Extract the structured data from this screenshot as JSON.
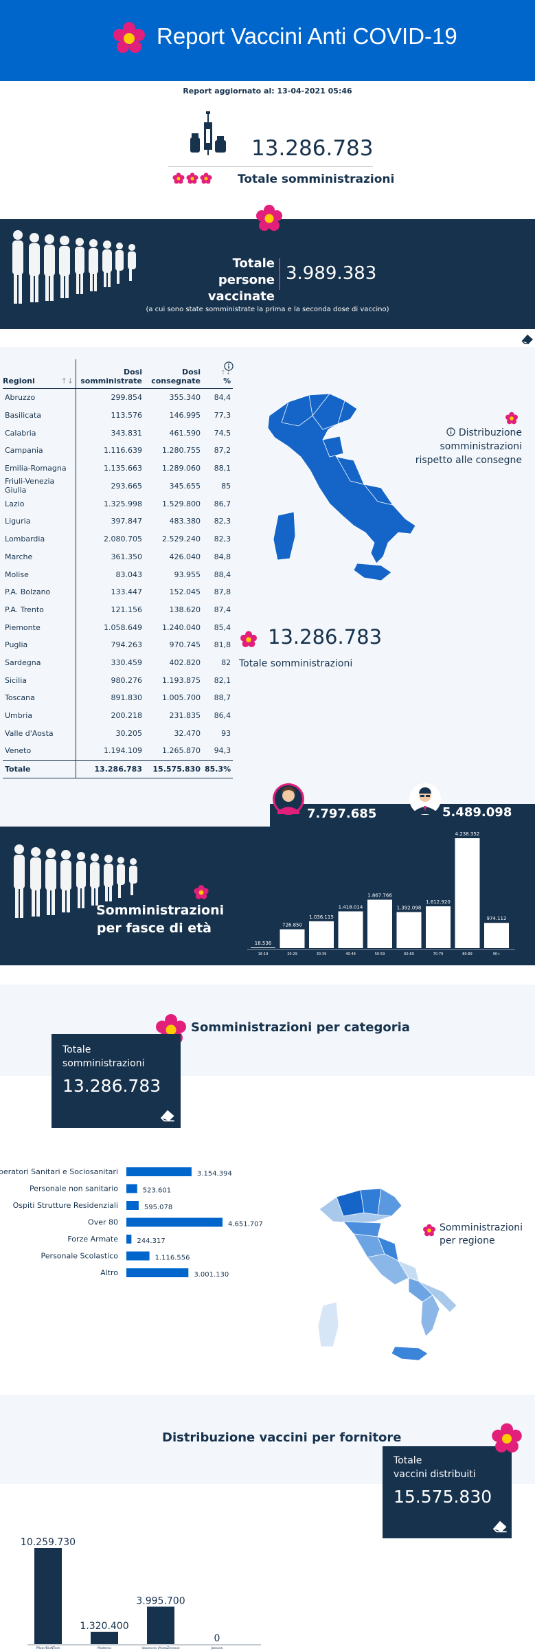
{
  "header": {
    "title": "Report Vaccini Anti COVID-19"
  },
  "updated": "Report aggiornato al: 13-04-2021 05:46",
  "total": {
    "value": "13.286.783",
    "label": "Totale somministrazioni"
  },
  "vaccinated": {
    "label_line1": "Totale",
    "label_line2": "persone vaccinate",
    "value": "3.989.383",
    "note": "(a cui sono state somministrate la prima e la seconda dose di vaccino)"
  },
  "regions_table": {
    "headers": {
      "region": "Regioni",
      "doses_line1": "Dosi",
      "doses_line2": "somministrate",
      "delivered_line1": "Dosi",
      "delivered_line2": "consegnate",
      "pct": "%"
    },
    "rows": [
      {
        "r": "Abruzzo",
        "a": "299.854",
        "b": "355.340",
        "p": "84,4"
      },
      {
        "r": "Basilicata",
        "a": "113.576",
        "b": "146.995",
        "p": "77,3"
      },
      {
        "r": "Calabria",
        "a": "343.831",
        "b": "461.590",
        "p": "74,5"
      },
      {
        "r": "Campania",
        "a": "1.116.639",
        "b": "1.280.755",
        "p": "87,2"
      },
      {
        "r": "Emilia-Romagna",
        "a": "1.135.663",
        "b": "1.289.060",
        "p": "88,1"
      },
      {
        "r": "Friuli-Venezia Giulia",
        "a": "293.665",
        "b": "345.655",
        "p": "85"
      },
      {
        "r": "Lazio",
        "a": "1.325.998",
        "b": "1.529.800",
        "p": "86,7"
      },
      {
        "r": "Liguria",
        "a": "397.847",
        "b": "483.380",
        "p": "82,3"
      },
      {
        "r": "Lombardia",
        "a": "2.080.705",
        "b": "2.529.240",
        "p": "82,3"
      },
      {
        "r": "Marche",
        "a": "361.350",
        "b": "426.040",
        "p": "84,8"
      },
      {
        "r": "Molise",
        "a": "83.043",
        "b": "93.955",
        "p": "88,4"
      },
      {
        "r": "P.A. Bolzano",
        "a": "133.447",
        "b": "152.045",
        "p": "87,8"
      },
      {
        "r": "P.A. Trento",
        "a": "121.156",
        "b": "138.620",
        "p": "87,4"
      },
      {
        "r": "Piemonte",
        "a": "1.058.649",
        "b": "1.240.040",
        "p": "85,4"
      },
      {
        "r": "Puglia",
        "a": "794.263",
        "b": "970.745",
        "p": "81,8"
      },
      {
        "r": "Sardegna",
        "a": "330.459",
        "b": "402.820",
        "p": "82"
      },
      {
        "r": "Sicilia",
        "a": "980.276",
        "b": "1.193.875",
        "p": "82,1"
      },
      {
        "r": "Toscana",
        "a": "891.830",
        "b": "1.005.700",
        "p": "88,7"
      },
      {
        "r": "Umbria",
        "a": "200.218",
        "b": "231.835",
        "p": "86,4"
      },
      {
        "r": "Valle d'Aosta",
        "a": "30.205",
        "b": "32.470",
        "p": "93"
      },
      {
        "r": "Veneto",
        "a": "1.194.109",
        "b": "1.265.870",
        "p": "94,3"
      }
    ],
    "total": {
      "r": "Totale",
      "a": "13.286.783",
      "b": "15.575.830",
      "p": "85.3%"
    }
  },
  "map1": {
    "label_line1": "Distribuzione somministrazioni",
    "label_line2": "rispetto alle consegne"
  },
  "total2": {
    "value": "13.286.783",
    "label": "Totale somministrazioni"
  },
  "gender": {
    "female": "7.797.685",
    "male": "5.489.098"
  },
  "age": {
    "title_line1": "Somministrazioni",
    "title_line2": "per fasce di età"
  },
  "category": {
    "title": "Somministrazioni per categoria",
    "box_line1": "Totale",
    "box_line2": "somministrazioni",
    "box_value": "13.286.783"
  },
  "map2": {
    "label_line1": "Somministrazioni",
    "label_line2": "per regione"
  },
  "supplier": {
    "title": "Distribuzione vaccini per fornitore",
    "box_line1": "Totale",
    "box_line2": "vaccini distribuiti",
    "box_value": "15.575.830"
  },
  "colors": {
    "navy": "#17324d",
    "blue": "#0066cc",
    "pink": "#e2207c",
    "light": "#f3f7fb"
  },
  "chart_data": [
    {
      "type": "bar",
      "categories": [
        "16-19",
        "20-29",
        "30-39",
        "40-49",
        "50-59",
        "60-69",
        "70-79",
        "80-89",
        "90+"
      ],
      "values": [
        18536,
        726850,
        1036115,
        1418014,
        1867766,
        1392098,
        1612920,
        4238352,
        974112
      ],
      "labels": [
        "18.536",
        "726.850",
        "1.036.115",
        "1.418.014",
        "1.867.766",
        "1.392.098",
        "1.612.920",
        "4.238.352",
        "974.112"
      ]
    },
    {
      "type": "bar",
      "orientation": "horizontal",
      "categories": [
        "Operatori Sanitari e Sociosanitari",
        "Personale non sanitario",
        "Ospiti Strutture Residenziali",
        "Over 80",
        "Forze Armate",
        "Personale Scolastico",
        "Altro"
      ],
      "values": [
        3154394,
        523601,
        595078,
        4651707,
        244317,
        1116556,
        3001130
      ],
      "labels": [
        "3.154.394",
        "523.601",
        "595.078",
        "4.651.707",
        "244.317",
        "1.116.556",
        "3.001.130"
      ]
    },
    {
      "type": "bar",
      "categories": [
        "Pfizer/BioNTech",
        "Moderna",
        "Vaxzevria (AstraZeneca)",
        "Janssen"
      ],
      "values": [
        10259730,
        1320400,
        3995700,
        0
      ],
      "labels": [
        "10.259.730",
        "1.320.400",
        "3.995.700",
        "0"
      ]
    }
  ]
}
